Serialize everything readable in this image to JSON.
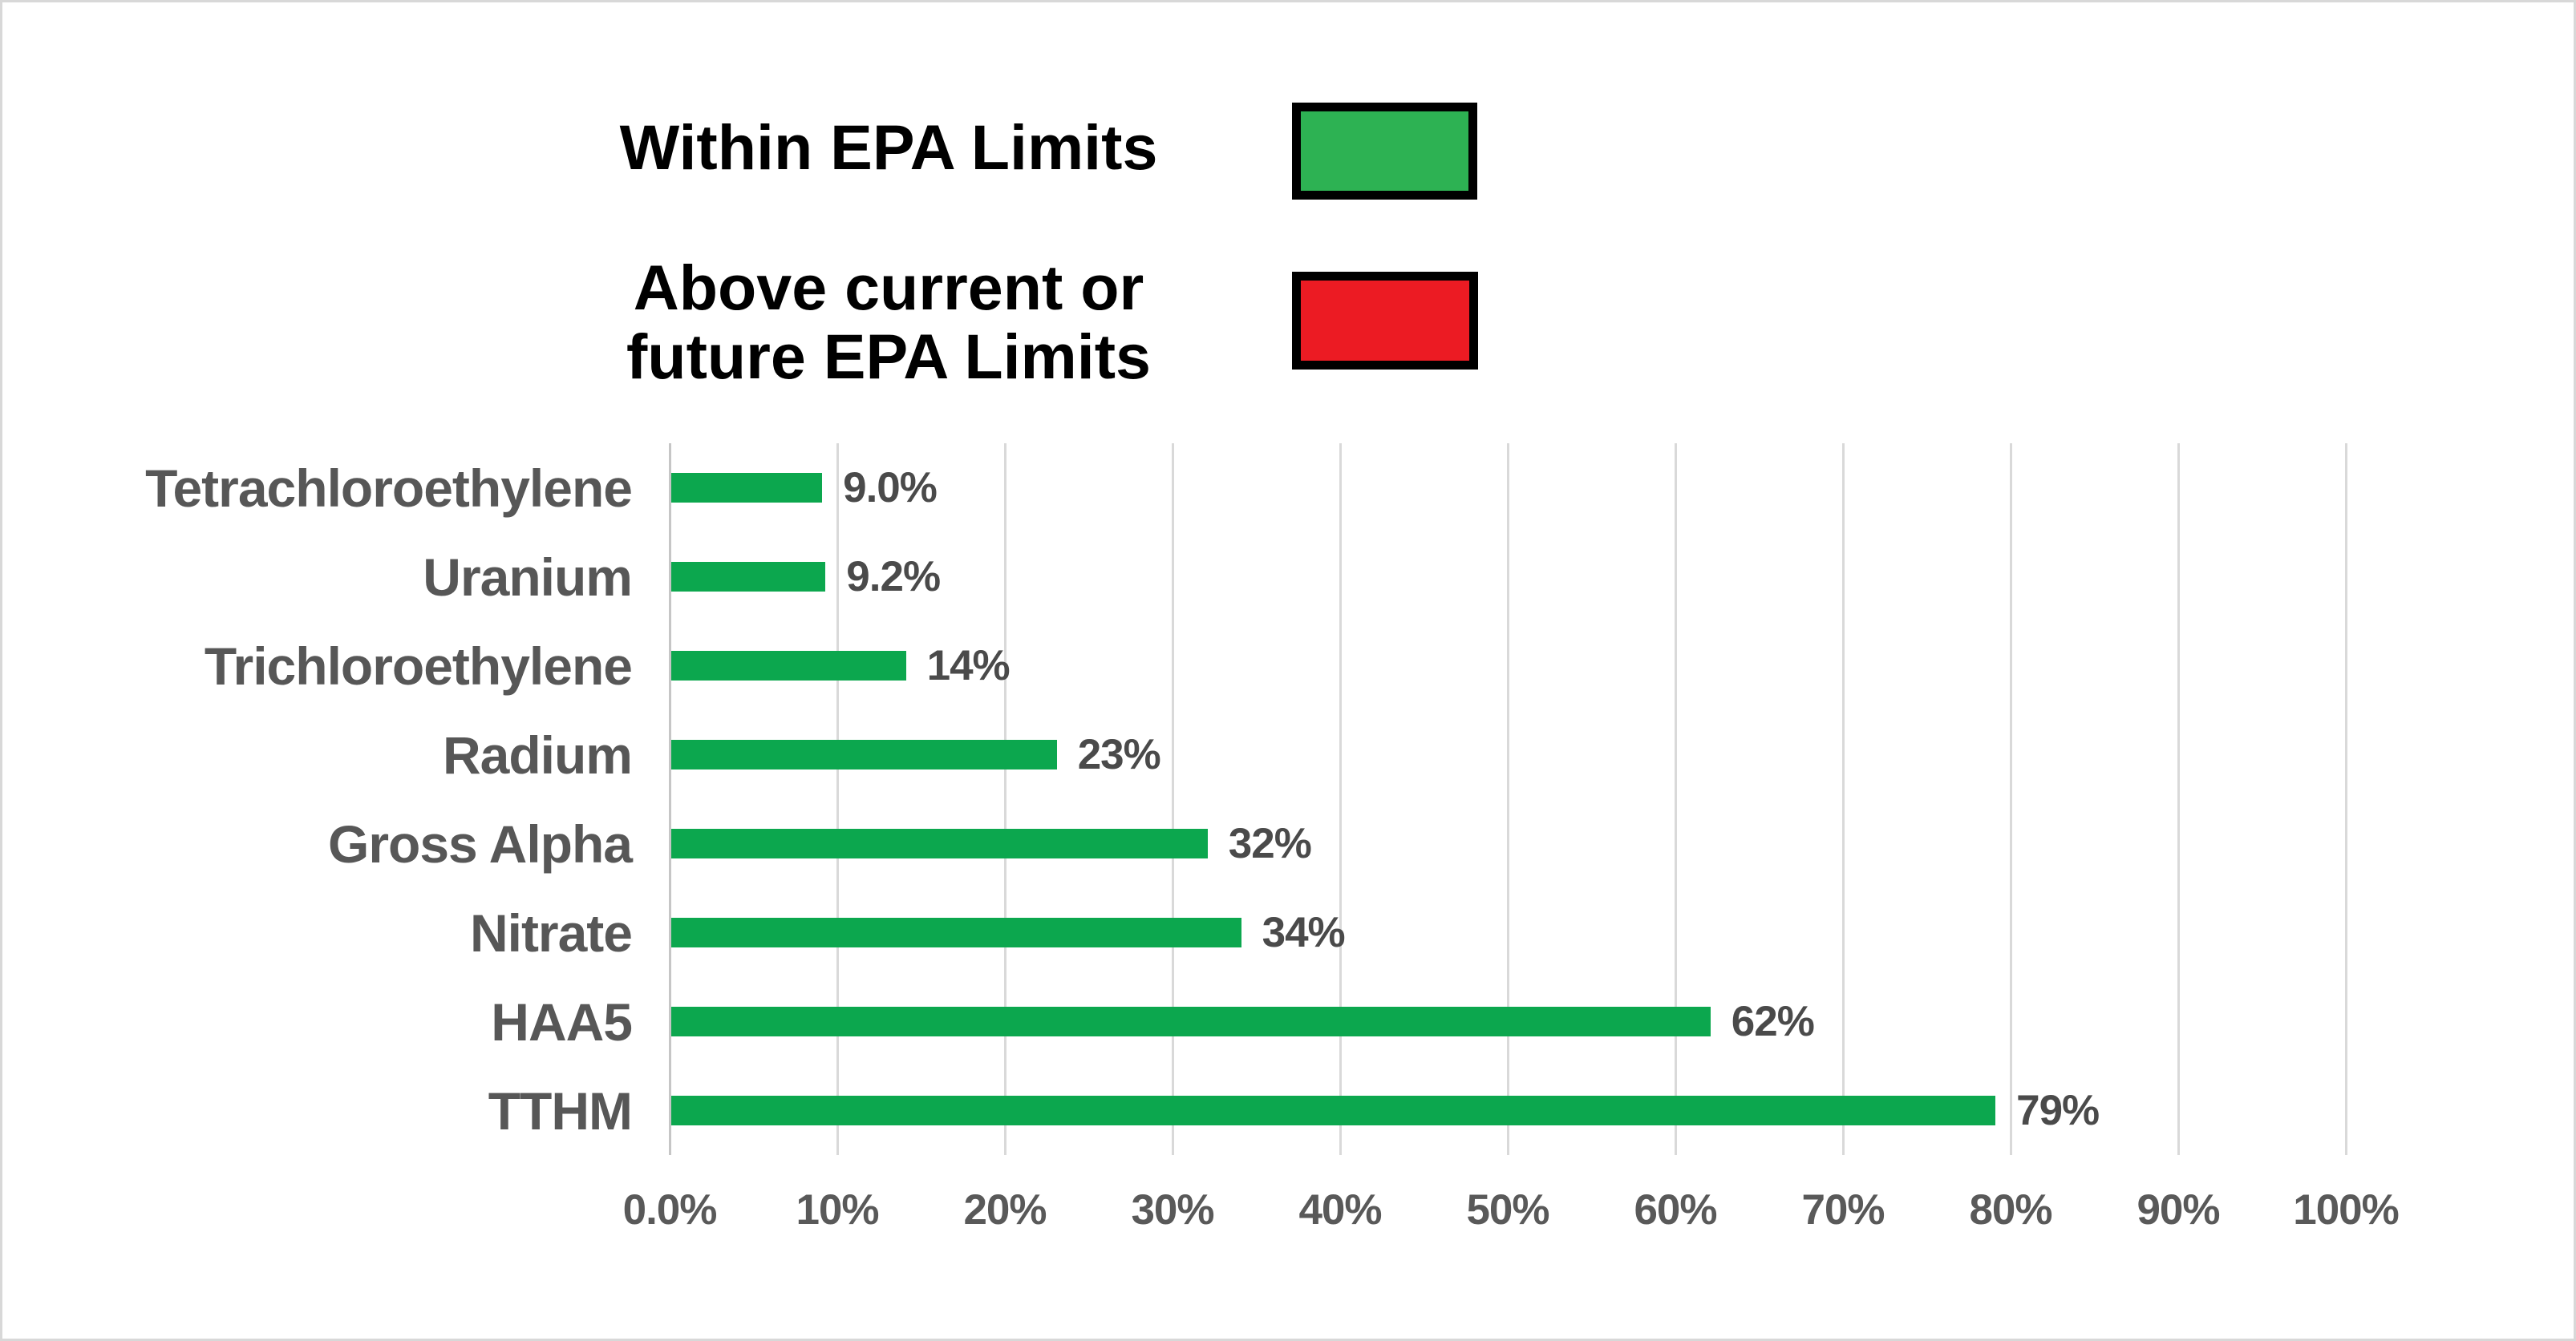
{
  "page": {
    "background": "#FFFFFF",
    "border_color": "#D8D8D8"
  },
  "legend": {
    "items": [
      {
        "label": "Within EPA Limits",
        "lines": [
          "Within EPA Limits"
        ],
        "swatch_color": "#2DB253"
      },
      {
        "label": "Above current or future EPA Limits",
        "lines": [
          "Above current or",
          "future EPA Limits"
        ],
        "swatch_color": "#EC1B23"
      }
    ],
    "swatch_border_color": "#000000",
    "text_color": "#000000"
  },
  "chart_data": {
    "type": "bar",
    "orientation": "horizontal",
    "categories": [
      "Tetrachloroethylene",
      "Uranium",
      "Trichloroethylene",
      "Radium",
      "Gross Alpha",
      "Nitrate",
      "HAA5",
      "TTHM"
    ],
    "values": [
      9.0,
      9.2,
      14,
      23,
      32,
      34,
      62,
      79
    ],
    "value_labels": [
      "9.0%",
      "9.2%",
      "14%",
      "23%",
      "32%",
      "34%",
      "62%",
      "79%"
    ],
    "series_name": "Within EPA Limits",
    "bar_color": "#0CA74E",
    "title": "",
    "xlabel": "",
    "ylabel": "",
    "xlim": [
      0,
      100
    ],
    "x_tick_values": [
      0,
      10,
      20,
      30,
      40,
      50,
      60,
      70,
      80,
      90,
      100
    ],
    "x_ticks": [
      "0.0%",
      "10%",
      "20%",
      "30%",
      "40%",
      "50%",
      "60%",
      "70%",
      "80%",
      "90%",
      "100%"
    ],
    "grid": true,
    "gridline_color": "#D9D9D9",
    "axis_line_color": "#C6C6C6",
    "category_label_color": "#575757",
    "value_label_color": "#4A4A4A",
    "tick_label_color": "#595959",
    "legend_position": "top"
  }
}
